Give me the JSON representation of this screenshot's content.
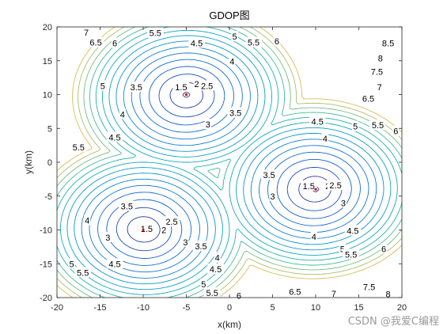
{
  "chart_data": {
    "type": "contour",
    "title": "GDOP图",
    "xlabel": "x(km)",
    "ylabel": "y(km)",
    "xlim": [
      -20,
      20
    ],
    "ylim": [
      -20,
      20
    ],
    "xticks": [
      -20,
      -15,
      -10,
      -5,
      0,
      5,
      10,
      15,
      20
    ],
    "yticks": [
      -20,
      -15,
      -10,
      -5,
      0,
      5,
      10,
      15,
      20
    ],
    "grid": false,
    "stations": [
      {
        "x": -5,
        "y": 10
      },
      {
        "x": 10,
        "y": -4
      },
      {
        "x": -10,
        "y": -10
      }
    ],
    "station_color": "#e00000",
    "contour_levels": [
      1.5,
      2,
      2.5,
      3,
      3.5,
      4,
      4.5,
      5,
      5.5,
      6,
      6.5,
      7,
      7.5,
      8,
      8.5
    ],
    "contour_labels": [
      {
        "text": "7",
        "x": -16.6,
        "y": 19.2
      },
      {
        "text": "6.5",
        "x": -15.5,
        "y": 17.7
      },
      {
        "text": "6",
        "x": -13.3,
        "y": 17.6
      },
      {
        "text": "5.5",
        "x": -8.6,
        "y": 19.1
      },
      {
        "text": "4.5",
        "x": -3.8,
        "y": 17.6
      },
      {
        "text": "5",
        "x": 0.6,
        "y": 18.6
      },
      {
        "text": "5.5",
        "x": 2.8,
        "y": 17.7
      },
      {
        "text": "6",
        "x": 5.5,
        "y": 17.9
      },
      {
        "text": "4",
        "x": 0.3,
        "y": 14.9
      },
      {
        "text": "5",
        "x": -14.7,
        "y": 11.3
      },
      {
        "text": "3.5",
        "x": -10.8,
        "y": 11.1
      },
      {
        "text": "1.5",
        "x": -5.6,
        "y": 11.1
      },
      {
        "text": "2",
        "x": -3.8,
        "y": 11.6
      },
      {
        "text": "2.5",
        "x": -2.6,
        "y": 11.3
      },
      {
        "text": "4",
        "x": -12.4,
        "y": 7.1
      },
      {
        "text": "3",
        "x": -2.5,
        "y": 5.6
      },
      {
        "text": "3.5",
        "x": 0.7,
        "y": 7.3
      },
      {
        "text": "8.5",
        "x": 18.4,
        "y": 17.6
      },
      {
        "text": "8",
        "x": 17.5,
        "y": 15.4
      },
      {
        "text": "7.5",
        "x": 17.1,
        "y": 13.4
      },
      {
        "text": "7",
        "x": 17.4,
        "y": 11.1
      },
      {
        "text": "6.5",
        "x": 16.1,
        "y": 9.4
      },
      {
        "text": "4.5",
        "x": 10.2,
        "y": 6.0
      },
      {
        "text": "5",
        "x": 14.6,
        "y": 5.3
      },
      {
        "text": "5.5",
        "x": 17.2,
        "y": 5.5
      },
      {
        "text": "6",
        "x": 19.3,
        "y": 4.6
      },
      {
        "text": "4.5",
        "x": -13.3,
        "y": 3.7
      },
      {
        "text": "4",
        "x": 11.1,
        "y": 3.5
      },
      {
        "text": "5.5",
        "x": -17.5,
        "y": 2.2
      },
      {
        "text": "3.5",
        "x": 4.6,
        "y": -1.9
      },
      {
        "text": "1.5",
        "x": 9.2,
        "y": -3.5
      },
      {
        "text": "2",
        "x": 11.4,
        "y": -3.5
      },
      {
        "text": "2.5",
        "x": 12.3,
        "y": -3.4
      },
      {
        "text": "3",
        "x": 5.0,
        "y": -5.0
      },
      {
        "text": "3",
        "x": 13.2,
        "y": -6.0
      },
      {
        "text": "3.5",
        "x": -11.9,
        "y": -6.5
      },
      {
        "text": "4",
        "x": -16.5,
        "y": -8.6
      },
      {
        "text": "1.5",
        "x": -9.6,
        "y": -9.8
      },
      {
        "text": "2.5",
        "x": -6.7,
        "y": -8.8
      },
      {
        "text": "2",
        "x": -7.6,
        "y": -10.0
      },
      {
        "text": "3",
        "x": -14.1,
        "y": -11.1
      },
      {
        "text": "3",
        "x": -5.1,
        "y": -11.8
      },
      {
        "text": "3.5",
        "x": -3.3,
        "y": -12.4
      },
      {
        "text": "4.5",
        "x": 14.3,
        "y": -10.1
      },
      {
        "text": "4",
        "x": 9.8,
        "y": -11.0
      },
      {
        "text": "5",
        "x": 13.1,
        "y": -12.8
      },
      {
        "text": "5.5",
        "x": 14.1,
        "y": -13.6
      },
      {
        "text": "6",
        "x": 17.9,
        "y": -12.8
      },
      {
        "text": "4.5",
        "x": -13.3,
        "y": -15.0
      },
      {
        "text": "4",
        "x": -1.4,
        "y": -14.1
      },
      {
        "text": "4.5",
        "x": -1.6,
        "y": -15.8
      },
      {
        "text": "5",
        "x": -18.3,
        "y": -15.0
      },
      {
        "text": "5.5",
        "x": -17.0,
        "y": -16.3
      },
      {
        "text": "5",
        "x": -3.0,
        "y": -18.0
      },
      {
        "text": "5.5",
        "x": -2.0,
        "y": -19.3
      },
      {
        "text": "6",
        "x": 1.1,
        "y": -19.7
      },
      {
        "text": "6.5",
        "x": 7.6,
        "y": -19.1
      },
      {
        "text": "7",
        "x": 12.1,
        "y": -19.4
      },
      {
        "text": "7.5",
        "x": 16.2,
        "y": -18.4
      },
      {
        "text": "8",
        "x": 18.4,
        "y": -19.5
      }
    ]
  },
  "watermark": "CSDN @我爱C编程"
}
